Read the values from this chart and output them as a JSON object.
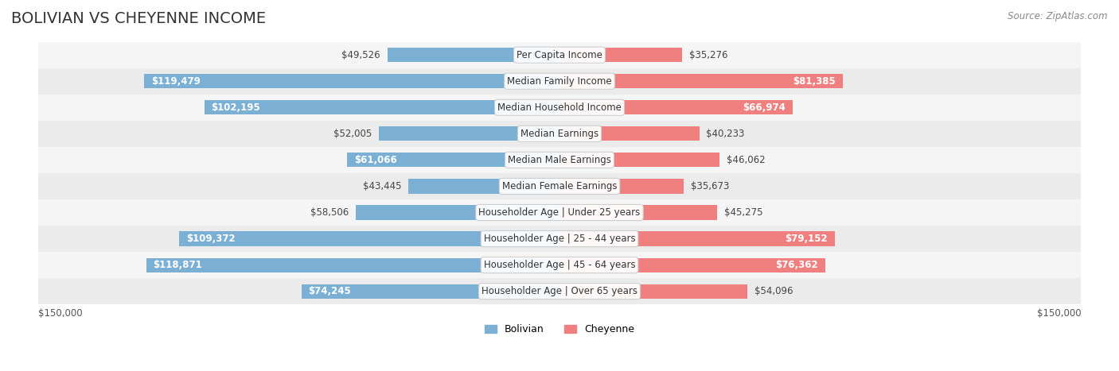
{
  "title": "BOLIVIAN VS CHEYENNE INCOME",
  "source": "Source: ZipAtlas.com",
  "categories": [
    "Per Capita Income",
    "Median Family Income",
    "Median Household Income",
    "Median Earnings",
    "Median Male Earnings",
    "Median Female Earnings",
    "Householder Age | Under 25 years",
    "Householder Age | 25 - 44 years",
    "Householder Age | 45 - 64 years",
    "Householder Age | Over 65 years"
  ],
  "bolivian_values": [
    49526,
    119479,
    102195,
    52005,
    61066,
    43445,
    58506,
    109372,
    118871,
    74245
  ],
  "cheyenne_values": [
    35276,
    81385,
    66974,
    40233,
    46062,
    35673,
    45275,
    79152,
    76362,
    54096
  ],
  "bolivian_labels": [
    "$49,526",
    "$119,479",
    "$102,195",
    "$52,005",
    "$61,066",
    "$43,445",
    "$58,506",
    "$109,372",
    "$118,871",
    "$74,245"
  ],
  "cheyenne_labels": [
    "$35,276",
    "$81,385",
    "$66,974",
    "$40,233",
    "$46,062",
    "$35,673",
    "$45,275",
    "$79,152",
    "$76,362",
    "$54,096"
  ],
  "bolivian_color": "#7bafd4",
  "cheyenne_color": "#f08080",
  "bolivian_color_dark": "#5b9abf",
  "cheyenne_color_dark": "#e06080",
  "max_value": 150000,
  "axis_label_left": "$150,000",
  "axis_label_right": "$150,000",
  "row_bg_color": "#f0f0f0",
  "row_bg_color_alt": "#e8e8e8",
  "background_color": "#ffffff",
  "title_fontsize": 14,
  "label_fontsize": 8.5,
  "category_fontsize": 8.5,
  "source_fontsize": 8.5
}
